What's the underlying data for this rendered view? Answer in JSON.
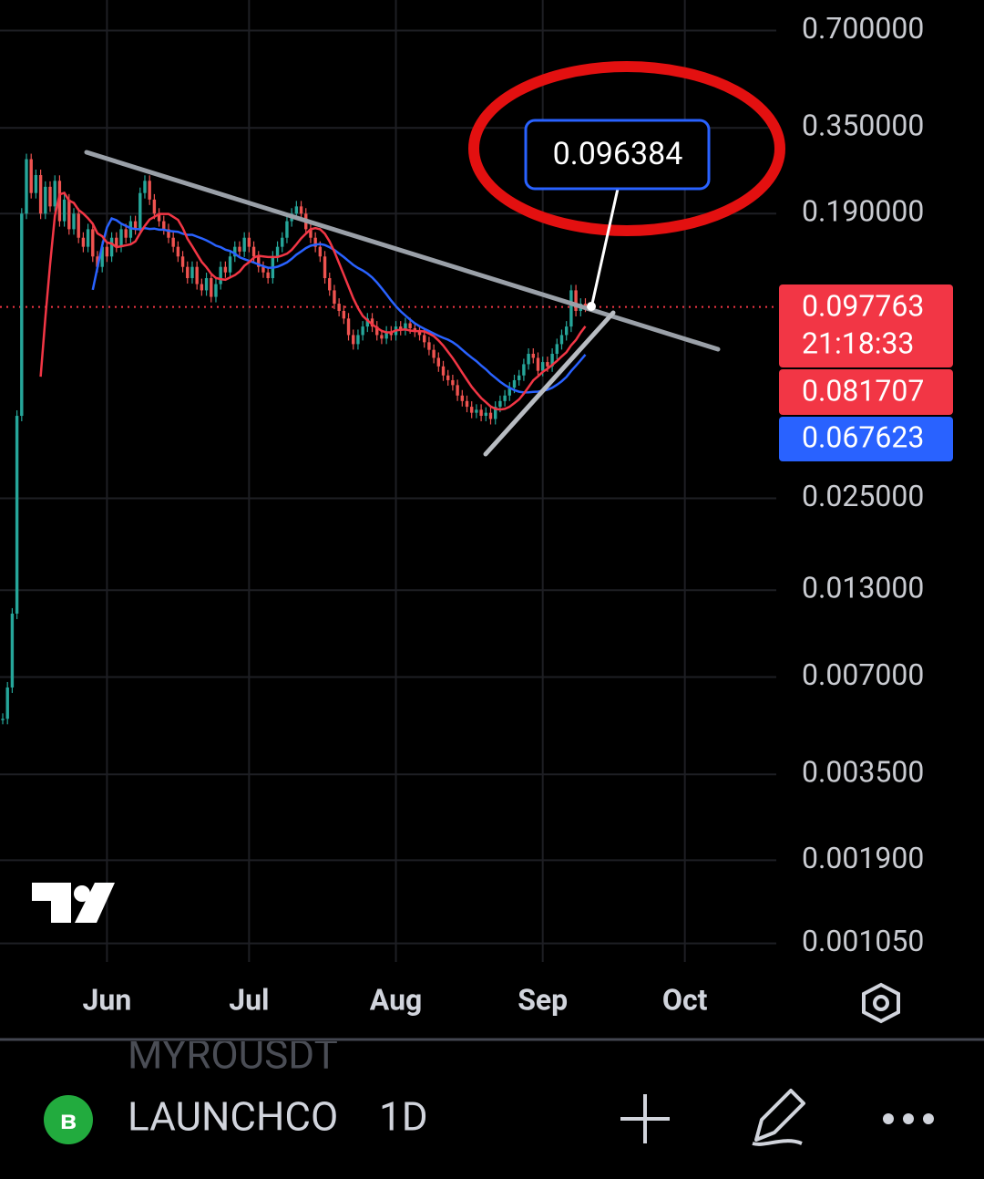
{
  "chart_data": {
    "type": "candlestick",
    "log_scale": true,
    "grid": true,
    "ylim": [
      0.00092,
      0.87
    ],
    "yticks": [
      {
        "value": 0.7,
        "label": "0.700000"
      },
      {
        "value": 0.35,
        "label": "0.350000"
      },
      {
        "value": 0.19,
        "label": "0.190000"
      },
      {
        "value": 0.025,
        "label": "0.025000"
      },
      {
        "value": 0.013,
        "label": "0.013000"
      },
      {
        "value": 0.007,
        "label": "0.007000"
      },
      {
        "value": 0.0035,
        "label": "0.003500"
      },
      {
        "value": 0.0019,
        "label": "0.001900"
      },
      {
        "value": 0.00105,
        "label": "0.001050"
      }
    ],
    "xlim": [
      -0.58,
      163.3
    ],
    "xticks": [
      {
        "value": 22,
        "label": "Jun"
      },
      {
        "value": 52,
        "label": "Jul"
      },
      {
        "value": 83,
        "label": "Aug"
      },
      {
        "value": 114,
        "label": "Sep"
      },
      {
        "value": 144,
        "label": "Oct"
      }
    ],
    "up_color": "#26a69a",
    "down_color": "#ef5350",
    "close": [
      0.0052,
      0.0065,
      0.011,
      0.045,
      0.19,
      0.28,
      0.22,
      0.25,
      0.19,
      0.23,
      0.2,
      0.24,
      0.18,
      0.21,
      0.17,
      0.19,
      0.16,
      0.15,
      0.17,
      0.14,
      0.13,
      0.15,
      0.14,
      0.16,
      0.15,
      0.17,
      0.16,
      0.18,
      0.17,
      0.22,
      0.24,
      0.21,
      0.19,
      0.18,
      0.17,
      0.16,
      0.15,
      0.14,
      0.13,
      0.12,
      0.13,
      0.115,
      0.11,
      0.12,
      0.105,
      0.115,
      0.13,
      0.125,
      0.14,
      0.15,
      0.145,
      0.16,
      0.15,
      0.14,
      0.13,
      0.125,
      0.12,
      0.14,
      0.15,
      0.16,
      0.18,
      0.19,
      0.2,
      0.19,
      0.17,
      0.16,
      0.15,
      0.14,
      0.12,
      0.11,
      0.1,
      0.095,
      0.09,
      0.08,
      0.075,
      0.08,
      0.085,
      0.09,
      0.085,
      0.08,
      0.078,
      0.082,
      0.08,
      0.085,
      0.083,
      0.087,
      0.084,
      0.082,
      0.08,
      0.076,
      0.072,
      0.068,
      0.064,
      0.06,
      0.058,
      0.056,
      0.052,
      0.05,
      0.048,
      0.046,
      0.047,
      0.045,
      0.046,
      0.044,
      0.048,
      0.05,
      0.052,
      0.055,
      0.058,
      0.06,
      0.065,
      0.07,
      0.068,
      0.062,
      0.066,
      0.064,
      0.07,
      0.075,
      0.08,
      0.085,
      0.11,
      0.095,
      0.1,
      0.098
    ],
    "annotation": 0.096384,
    "last_price": 0.097763,
    "countdown": "21:18:33",
    "ma_labels": [
      0.081707,
      0.067623
    ]
  },
  "toolbar": {
    "symbol": "LAUNCHCO",
    "interval": "1D",
    "prev_symbol": "MYROUSDT"
  }
}
